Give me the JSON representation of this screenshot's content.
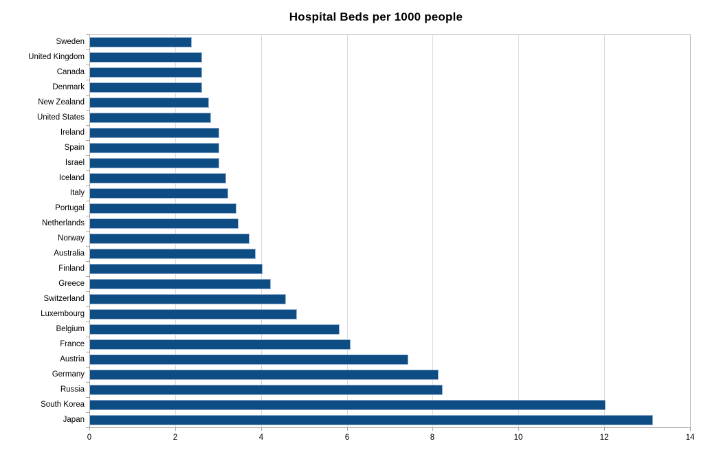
{
  "chart_data": {
    "type": "bar",
    "orientation": "horizontal",
    "title": "Hospital Beds per 1000 people",
    "categories": [
      "Sweden",
      "United Kingdom",
      "Canada",
      "Denmark",
      "New Zealand",
      "United States",
      "Ireland",
      "Spain",
      "Israel",
      "Iceland",
      "Italy",
      "Portugal",
      "Netherlands",
      "Norway",
      "Australia",
      "Finland",
      "Greece",
      "Switzerland",
      "Luxembourg",
      "Belgium",
      "France",
      "Austria",
      "Germany",
      "Russia",
      "South Korea",
      "Japan"
    ],
    "values": [
      2.35,
      2.6,
      2.6,
      2.6,
      2.75,
      2.8,
      3.0,
      3.0,
      3.0,
      3.15,
      3.2,
      3.4,
      3.45,
      3.7,
      3.85,
      4.0,
      4.2,
      4.55,
      4.8,
      5.8,
      6.05,
      7.4,
      8.1,
      8.2,
      12.0,
      13.1
    ],
    "xlabel": "",
    "ylabel": "",
    "xlim": [
      0,
      14
    ],
    "x_ticks": [
      0,
      2,
      4,
      6,
      8,
      10,
      12,
      14
    ],
    "grid": true,
    "legend": "none",
    "colors": {
      "bar_fill": "#0e4c84",
      "bar_border": "#9ab4d4",
      "gridline": "#d9d9d9",
      "axis": "#a6a6a6",
      "plot_border": "#c6c6c6",
      "background": "#ffffff",
      "text": "#000000"
    }
  }
}
